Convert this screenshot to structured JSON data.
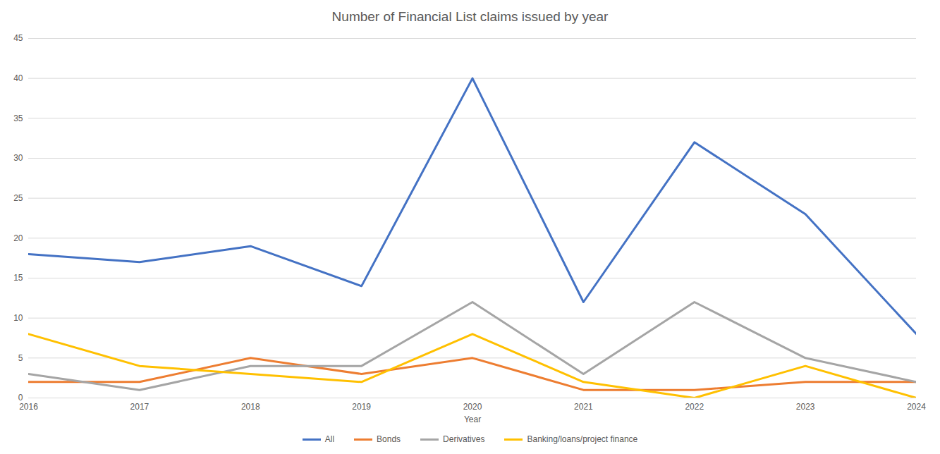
{
  "chart_data": {
    "type": "line",
    "title": "Number of Financial List claims issued by year",
    "x_label": "Year",
    "x": [
      2016,
      2017,
      2018,
      2019,
      2020,
      2021,
      2022,
      2023,
      2024
    ],
    "series": [
      {
        "name": "All",
        "color": "#4472c4",
        "values": [
          18,
          17,
          19,
          14,
          40,
          12,
          32,
          23,
          8
        ]
      },
      {
        "name": "Bonds",
        "color": "#ed7d31",
        "values": [
          2,
          2,
          5,
          3,
          5,
          1,
          1,
          2,
          2
        ]
      },
      {
        "name": "Derivatives",
        "color": "#a5a5a5",
        "values": [
          3,
          1,
          4,
          4,
          12,
          3,
          12,
          5,
          2
        ]
      },
      {
        "name": "Banking/loans/project finance",
        "color": "#ffc000",
        "values": [
          8,
          4,
          3,
          2,
          8,
          2,
          0,
          4,
          0
        ]
      }
    ],
    "xlim": [
      2016,
      2024
    ],
    "xticks": [
      2016,
      2017,
      2018,
      2019,
      2020,
      2021,
      2022,
      2023,
      2024
    ],
    "ylim": [
      0,
      45
    ],
    "yticks": [
      0,
      5,
      10,
      15,
      20,
      25,
      30,
      35,
      40,
      45
    ],
    "grid": true,
    "legend": "bottom"
  }
}
